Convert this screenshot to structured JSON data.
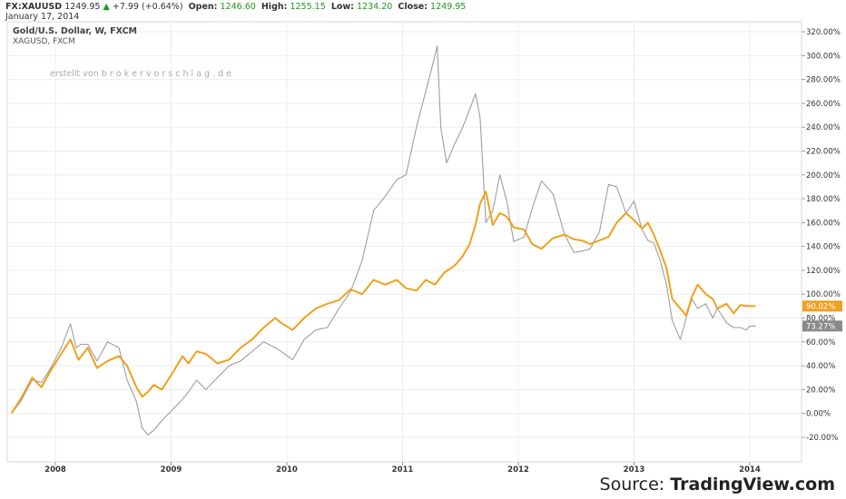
{
  "header": {
    "symbol": "FX:XAUUSD",
    "price": "1249.95",
    "change": "+7.99 (+0.64%)",
    "open_label": "Open:",
    "open": "1246.60",
    "high_label": "High:",
    "high": "1255.15",
    "low_label": "Low:",
    "low": "1234.20",
    "close_label": "Close:",
    "close": "1249.95",
    "date": "January 17, 2014"
  },
  "chart_title": "Gold/U.S. Dollar, W, FXCM",
  "compare_symbol": "XAGUSD, FXCM",
  "watermark": "erstellt von b r o k e r v o r s c h l a g . d e",
  "source": {
    "prefix": "Source: ",
    "brand": "TradingView.com"
  },
  "colors": {
    "gold": "#f0a01e",
    "silver": "#9e9e9e",
    "grid": "#e6e6e6",
    "up": "#1a9a1a"
  },
  "chart_data": {
    "type": "line",
    "title": "Gold/U.S. Dollar, W, FXCM",
    "ylim": [
      -25,
      325
    ],
    "xlim": [
      2007.62,
      2014.45
    ],
    "y_ticks": [
      320,
      300,
      280,
      260,
      240,
      220,
      200,
      180,
      160,
      140,
      120,
      100,
      80,
      60,
      40,
      20,
      0,
      -20
    ],
    "y_tick_labels": [
      "320.00%",
      "300.00%",
      "280.00%",
      "260.00%",
      "240.00%",
      "220.00%",
      "200.00%",
      "180.00%",
      "160.00%",
      "140.00%",
      "120.00%",
      "100.00%",
      "80.00%",
      "60.00%",
      "40.00%",
      "20.00%",
      "0.00%",
      "-20.00%"
    ],
    "x_ticks": [
      2008,
      2009,
      2010,
      2011,
      2012,
      2013,
      2014
    ],
    "x_tick_labels": [
      "2008",
      "2009",
      "2010",
      "2011",
      "2012",
      "2013",
      "2014"
    ],
    "grid": true,
    "series": [
      {
        "name": "XAUUSD",
        "color": "#f0a01e",
        "last_label": "90.02%",
        "x": [
          2007.62,
          2007.7,
          2007.8,
          2007.88,
          2007.96,
          2008.05,
          2008.13,
          2008.2,
          2008.28,
          2008.36,
          2008.45,
          2008.55,
          2008.62,
          2008.7,
          2008.75,
          2008.8,
          2008.85,
          2008.92,
          2009.0,
          2009.1,
          2009.15,
          2009.22,
          2009.3,
          2009.4,
          2009.5,
          2009.6,
          2009.7,
          2009.8,
          2009.9,
          2009.95,
          2010.05,
          2010.15,
          2010.25,
          2010.35,
          2010.45,
          2010.55,
          2010.65,
          2010.75,
          2010.85,
          2010.95,
          2011.03,
          2011.12,
          2011.2,
          2011.28,
          2011.36,
          2011.45,
          2011.52,
          2011.58,
          2011.63,
          2011.67,
          2011.72,
          2011.78,
          2011.84,
          2011.9,
          2011.96,
          2012.05,
          2012.12,
          2012.2,
          2012.3,
          2012.4,
          2012.48,
          2012.55,
          2012.62,
          2012.7,
          2012.78,
          2012.85,
          2012.93,
          2013.0,
          2013.07,
          2013.12,
          2013.17,
          2013.22,
          2013.28,
          2013.33,
          2013.4,
          2013.45,
          2013.5,
          2013.55,
          2013.62,
          2013.68,
          2013.72,
          2013.8,
          2013.86,
          2013.92,
          2013.97,
          2014.05
        ],
        "values": [
          0,
          12,
          30,
          22,
          36,
          50,
          62,
          45,
          55,
          38,
          44,
          48,
          40,
          22,
          14,
          18,
          24,
          20,
          32,
          48,
          42,
          52,
          50,
          42,
          45,
          55,
          62,
          72,
          80,
          76,
          70,
          80,
          88,
          92,
          95,
          104,
          100,
          112,
          108,
          112,
          105,
          103,
          112,
          108,
          118,
          124,
          132,
          142,
          158,
          176,
          186,
          158,
          168,
          165,
          156,
          154,
          142,
          138,
          147,
          150,
          146,
          145,
          142,
          145,
          148,
          160,
          168,
          162,
          155,
          160,
          150,
          138,
          122,
          96,
          88,
          82,
          98,
          108,
          100,
          96,
          88,
          92,
          84,
          91,
          90.02,
          90.02
        ]
      },
      {
        "name": "XAGUSD",
        "color": "#9e9e9e",
        "last_label": "73.27%",
        "x": [
          2007.62,
          2007.7,
          2007.8,
          2007.88,
          2007.96,
          2008.05,
          2008.13,
          2008.18,
          2008.22,
          2008.28,
          2008.36,
          2008.45,
          2008.55,
          2008.62,
          2008.7,
          2008.75,
          2008.8,
          2008.85,
          2008.92,
          2009.0,
          2009.1,
          2009.15,
          2009.22,
          2009.3,
          2009.4,
          2009.5,
          2009.6,
          2009.7,
          2009.8,
          2009.9,
          2009.95,
          2010.05,
          2010.15,
          2010.25,
          2010.35,
          2010.45,
          2010.55,
          2010.65,
          2010.75,
          2010.85,
          2010.95,
          2011.03,
          2011.12,
          2011.2,
          2011.28,
          2011.3,
          2011.33,
          2011.38,
          2011.45,
          2011.52,
          2011.58,
          2011.63,
          2011.67,
          2011.72,
          2011.78,
          2011.84,
          2011.9,
          2011.96,
          2012.05,
          2012.12,
          2012.2,
          2012.3,
          2012.4,
          2012.48,
          2012.55,
          2012.62,
          2012.7,
          2012.78,
          2012.85,
          2012.93,
          2013.0,
          2013.07,
          2013.12,
          2013.17,
          2013.22,
          2013.28,
          2013.33,
          2013.4,
          2013.45,
          2013.5,
          2013.55,
          2013.62,
          2013.68,
          2013.72,
          2013.8,
          2013.86,
          2013.92,
          2013.97,
          2014.0,
          2014.05
        ],
        "values": [
          0,
          10,
          28,
          26,
          38,
          55,
          75,
          55,
          58,
          58,
          44,
          60,
          55,
          28,
          10,
          -12,
          -18,
          -14,
          -6,
          2,
          12,
          18,
          28,
          20,
          30,
          40,
          44,
          52,
          60,
          55,
          52,
          45,
          62,
          70,
          72,
          88,
          102,
          128,
          170,
          182,
          196,
          200,
          240,
          270,
          300,
          308,
          240,
          210,
          226,
          240,
          255,
          268,
          248,
          160,
          170,
          200,
          178,
          144,
          148,
          172,
          195,
          184,
          150,
          135,
          136,
          138,
          152,
          192,
          190,
          168,
          178,
          154,
          145,
          143,
          130,
          108,
          78,
          62,
          80,
          96,
          88,
          92,
          80,
          88,
          76,
          72,
          72,
          70,
          73.27,
          73.27
        ]
      }
    ]
  }
}
